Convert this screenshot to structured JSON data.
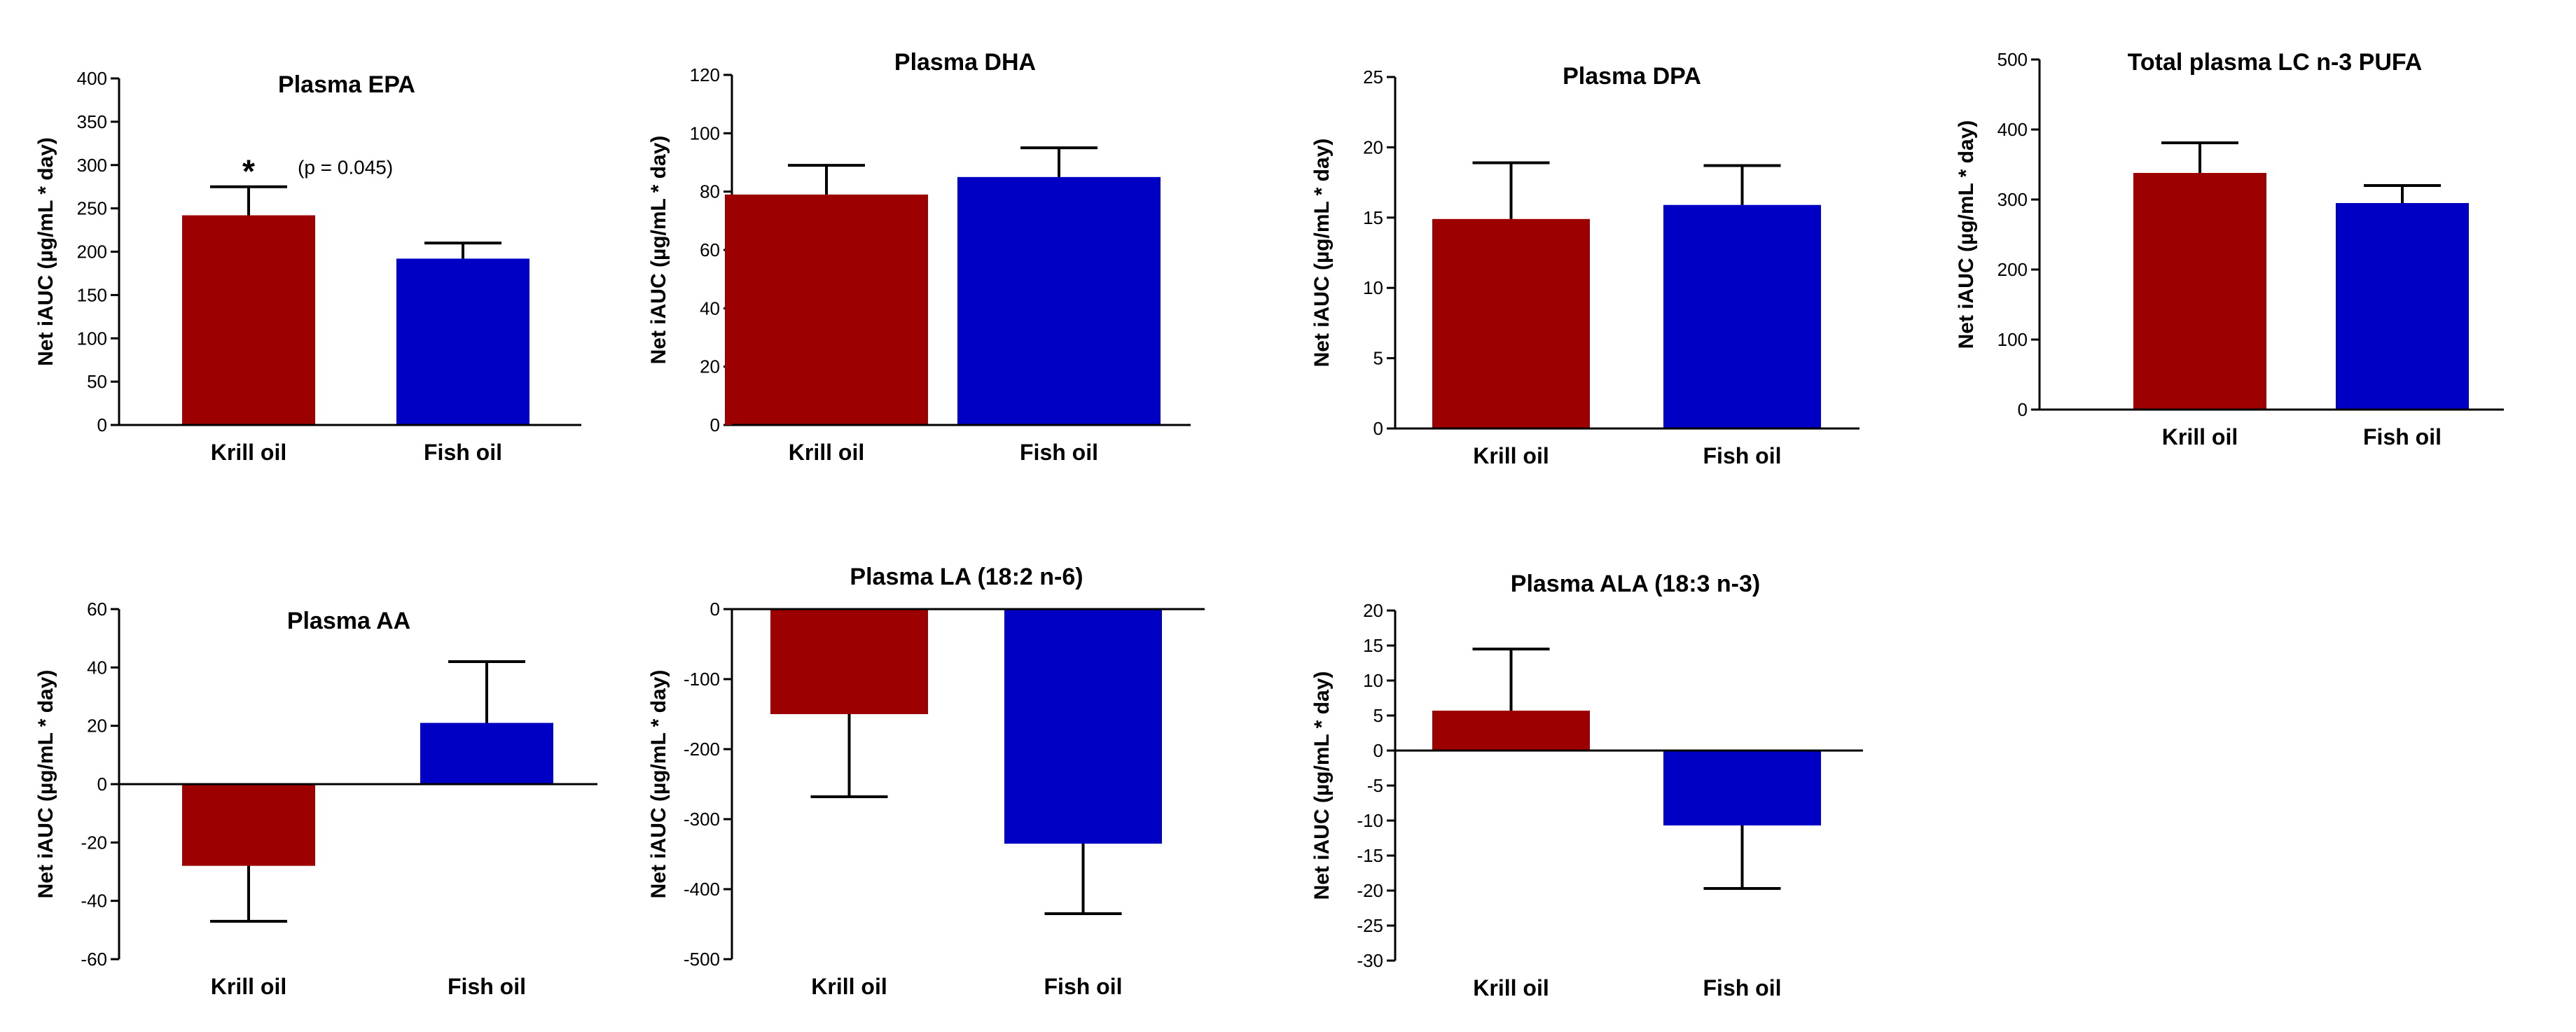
{
  "colors": {
    "krill": "#9c0000",
    "fish": "#0000c4",
    "axis": "#000000"
  },
  "chart_data": [
    {
      "type": "bar",
      "title": "Plasma EPA",
      "ylabel": "Net iAUC (µg/mL * day)",
      "categories": [
        "Krill oil",
        "Fish oil"
      ],
      "values": [
        242,
        192
      ],
      "errors": [
        33,
        18
      ],
      "ylim": [
        0,
        400
      ],
      "yticks": [
        0,
        50,
        100,
        150,
        200,
        250,
        300,
        350,
        400
      ],
      "annotations": [
        {
          "text": "*",
          "category": 0,
          "kind": "star"
        },
        {
          "text": "(p = 0.045)",
          "category": 0,
          "kind": "pvalue"
        }
      ]
    },
    {
      "type": "bar",
      "title": "Plasma DHA",
      "ylabel": "Net iAUC (µg/mL * day)",
      "categories": [
        "Krill oil",
        "Fish oil"
      ],
      "values": [
        79,
        85
      ],
      "errors": [
        10,
        10
      ],
      "ylim": [
        0,
        120
      ],
      "yticks": [
        0,
        20,
        40,
        60,
        80,
        100,
        120
      ]
    },
    {
      "type": "bar",
      "title": "Plasma DPA",
      "ylabel": "Net iAUC (µg/mL * day)",
      "categories": [
        "Krill oil",
        "Fish oil"
      ],
      "values": [
        14.9,
        15.9
      ],
      "errors": [
        4.0,
        2.8
      ],
      "ylim": [
        0,
        25
      ],
      "yticks": [
        0,
        5,
        10,
        15,
        20,
        25
      ]
    },
    {
      "type": "bar",
      "title": "Total plasma LC n-3 PUFA",
      "ylabel": "Net iAUC (µg/mL * day)",
      "categories": [
        "Krill oil",
        "Fish oil"
      ],
      "values": [
        338,
        295
      ],
      "errors": [
        43,
        25
      ],
      "ylim": [
        0,
        500
      ],
      "yticks": [
        0,
        100,
        200,
        300,
        400,
        500
      ]
    },
    {
      "type": "bar",
      "title": "Plasma AA",
      "ylabel": "Net iAUC (µg/mL * day)",
      "categories": [
        "Krill oil",
        "Fish oil"
      ],
      "values": [
        -28,
        21
      ],
      "errors": [
        19,
        21
      ],
      "ylim": [
        -60,
        60
      ],
      "yticks": [
        -60,
        -40,
        -20,
        0,
        20,
        40,
        60
      ]
    },
    {
      "type": "bar",
      "title": "Plasma LA (18:2 n-6)",
      "ylabel": "Net iAUC (µg/mL * day)",
      "categories": [
        "Krill oil",
        "Fish oil"
      ],
      "values": [
        -150,
        -335
      ],
      "errors": [
        118,
        100
      ],
      "ylim": [
        -500,
        0
      ],
      "yticks": [
        -500,
        -400,
        -300,
        -200,
        -100,
        0
      ]
    },
    {
      "type": "bar",
      "title": "Plasma ALA (18:3 n-3)",
      "ylabel": "Net iAUC (µg/mL * day)",
      "categories": [
        "Krill oil",
        "Fish oil"
      ],
      "values": [
        5.7,
        -10.7
      ],
      "errors": [
        8.8,
        9.0
      ],
      "ylim": [
        -30,
        20
      ],
      "yticks": [
        -30,
        -25,
        -20,
        -15,
        -10,
        -5,
        0,
        5,
        10,
        15,
        20
      ]
    }
  ]
}
